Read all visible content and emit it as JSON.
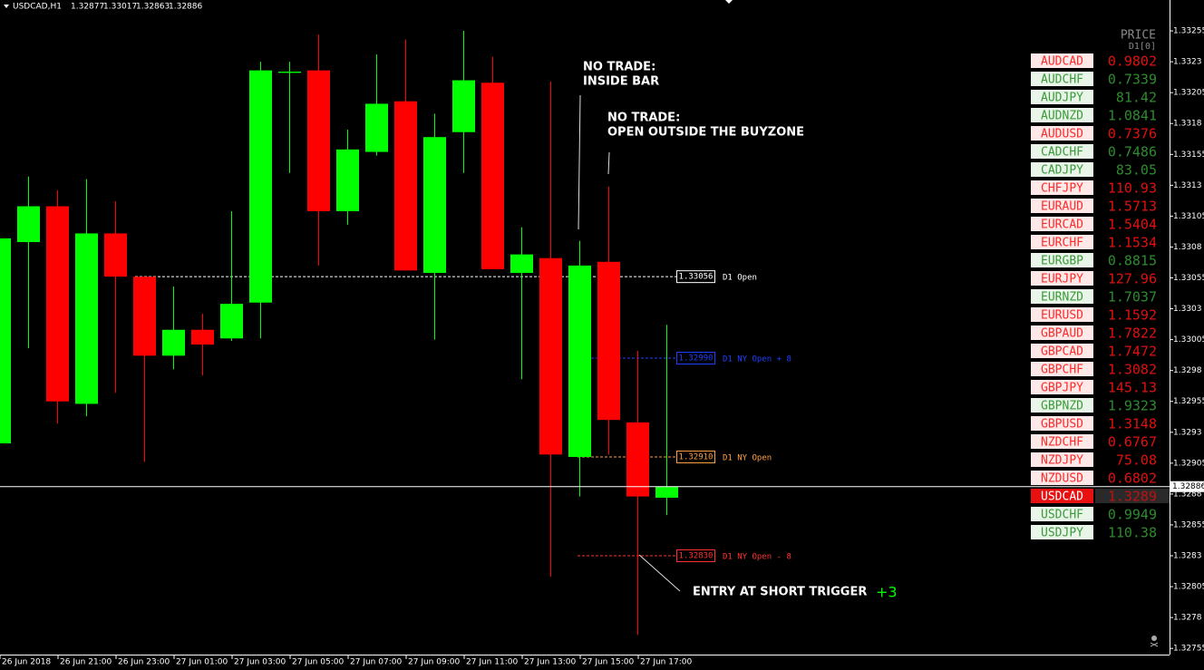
{
  "chart_data": {
    "type": "candlestick",
    "title": "USDCAD,H1",
    "categories": [
      "26 Jun 2018",
      null,
      "26 Jun 21:00",
      null,
      "26 Jun 23:00",
      null,
      "27 Jun 01:00",
      null,
      "27 Jun 03:00",
      null,
      "27 Jun 05:00",
      null,
      "27 Jun 07:00",
      null,
      "27 Jun 09:00",
      null,
      "27 Jun 11:00",
      null,
      "27 Jun 13:00",
      null,
      "27 Jun 15:00",
      null,
      "27 Jun 17:00",
      null
    ],
    "open": [
      1.32921,
      1.33084,
      1.33113,
      1.32953,
      1.33091,
      1.33056,
      1.32992,
      1.33013,
      1.33006,
      1.33035,
      1.33221,
      1.33223,
      1.33109,
      1.33157,
      1.33198,
      1.33059,
      1.33173,
      1.33213,
      1.33059,
      1.33071,
      1.3291,
      1.33068,
      1.32938,
      1.32877
    ],
    "high": [
      1.33087,
      1.33137,
      1.33126,
      1.33135,
      1.33117,
      1.33056,
      1.33048,
      1.33026,
      1.33109,
      1.3323,
      1.3323,
      1.33252,
      1.33175,
      1.33236,
      1.33248,
      1.33188,
      1.33255,
      1.33234,
      1.33096,
      1.33214,
      1.33085,
      1.33129,
      1.32996,
      1.33017
    ],
    "low": [
      1.32921,
      1.32998,
      1.32937,
      1.32943,
      1.32962,
      1.32906,
      1.32981,
      1.32976,
      1.33004,
      1.33006,
      1.3314,
      1.33065,
      1.33098,
      1.33154,
      1.33061,
      1.33005,
      1.3314,
      1.33062,
      1.32973,
      1.32813,
      1.32878,
      1.32912,
      1.32766,
      1.32863
    ],
    "close": [
      1.33087,
      1.33113,
      1.32955,
      1.33091,
      1.33056,
      1.32992,
      1.33013,
      1.33001,
      1.33034,
      1.33223,
      1.33222,
      1.33109,
      1.33159,
      1.33196,
      1.33061,
      1.33169,
      1.33215,
      1.33062,
      1.33074,
      1.32912,
      1.33065,
      1.3294,
      1.32878,
      1.32886
    ],
    "up_color": "#00ff00",
    "down_color": "#ff0000",
    "ylim": [
      1.3275,
      1.3328
    ],
    "yticks": [
      1.33255,
      1.3323,
      1.33205,
      1.3318,
      1.33155,
      1.3313,
      1.33105,
      1.3308,
      1.33055,
      1.3303,
      1.33005,
      1.3298,
      1.32955,
      1.3293,
      1.32905,
      1.3288,
      1.32855,
      1.3283,
      1.32805,
      1.3278,
      1.32755
    ],
    "grid": false,
    "levels": [
      {
        "value": 1.33056,
        "value_label": "1.33056",
        "label": "D1 Open",
        "color": "#ffffff"
      },
      {
        "value": 1.3299,
        "value_label": "1.32990",
        "label": "D1 NY Open + 8",
        "color": "#1f3fff"
      },
      {
        "value": 1.3291,
        "value_label": "1.32910",
        "label": "D1 NY Open",
        "color": "#ffa040"
      },
      {
        "value": 1.3283,
        "value_label": "1.32830",
        "label": "D1 NY Open - 8",
        "color": "#ff3030"
      }
    ],
    "annotations": [
      {
        "lines": [
          "NO TRADE:",
          "INSIDE BAR"
        ]
      },
      {
        "lines": [
          "NO TRADE:",
          "OPEN OUTSIDE THE BUYZONE"
        ]
      },
      {
        "lines": [
          "ENTRY AT SHORT TRIGGER"
        ]
      }
    ],
    "result": "+3"
  },
  "price_panel": {
    "header": "PRICE",
    "subheader": "D1[0]",
    "rows": [
      {
        "symbol": "AUDCAD",
        "price": 0.9802,
        "direction": "down"
      },
      {
        "symbol": "AUDCHF",
        "price": 0.7339,
        "direction": "up"
      },
      {
        "symbol": "AUDJPY",
        "price": 81.42,
        "direction": "up"
      },
      {
        "symbol": "AUDNZD",
        "price": 1.0841,
        "direction": "up"
      },
      {
        "symbol": "AUDUSD",
        "price": 0.7376,
        "direction": "down"
      },
      {
        "symbol": "CADCHF",
        "price": 0.7486,
        "direction": "up"
      },
      {
        "symbol": "CADJPY",
        "price": 83.05,
        "direction": "up"
      },
      {
        "symbol": "CHFJPY",
        "price": 110.93,
        "direction": "down"
      },
      {
        "symbol": "EURAUD",
        "price": 1.5713,
        "direction": "down"
      },
      {
        "symbol": "EURCAD",
        "price": 1.5404,
        "direction": "down"
      },
      {
        "symbol": "EURCHF",
        "price": 1.1534,
        "direction": "down"
      },
      {
        "symbol": "EURGBP",
        "price": 0.8815,
        "direction": "up"
      },
      {
        "symbol": "EURJPY",
        "price": 127.96,
        "direction": "down"
      },
      {
        "symbol": "EURNZD",
        "price": 1.7037,
        "direction": "up"
      },
      {
        "symbol": "EURUSD",
        "price": 1.1592,
        "direction": "down"
      },
      {
        "symbol": "GBPAUD",
        "price": 1.7822,
        "direction": "down"
      },
      {
        "symbol": "GBPCAD",
        "price": 1.7472,
        "direction": "down"
      },
      {
        "symbol": "GBPCHF",
        "price": 1.3082,
        "direction": "down"
      },
      {
        "symbol": "GBPJPY",
        "price": 145.13,
        "direction": "down"
      },
      {
        "symbol": "GBPNZD",
        "price": 1.9323,
        "direction": "up"
      },
      {
        "symbol": "GBPUSD",
        "price": 1.3148,
        "direction": "down"
      },
      {
        "symbol": "NZDCHF",
        "price": 0.6767,
        "direction": "down"
      },
      {
        "symbol": "NZDJPY",
        "price": 75.08,
        "direction": "down"
      },
      {
        "symbol": "NZDUSD",
        "price": 0.6802,
        "direction": "down"
      },
      {
        "symbol": "USDCAD",
        "price": 1.3289,
        "direction": "down",
        "highlight": true
      },
      {
        "symbol": "USDCHF",
        "price": 0.9949,
        "direction": "up"
      },
      {
        "symbol": "USDJPY",
        "price": 110.38,
        "direction": "up"
      }
    ]
  }
}
